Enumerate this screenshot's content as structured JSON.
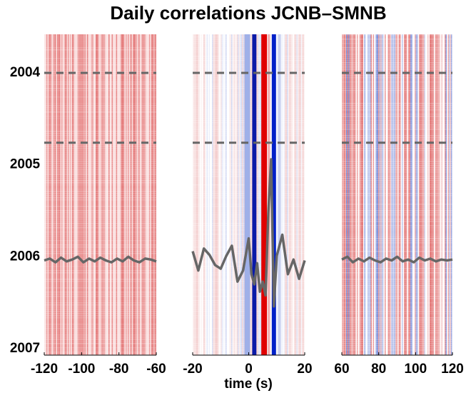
{
  "chart_data": {
    "type": "heatmap",
    "title": "Daily correlations JCNB–SMNB",
    "xlabel": "time (s)",
    "ylim": [
      2003.58,
      2007.07
    ],
    "y_inverted": true,
    "yticks": [
      2004,
      2005,
      2006,
      2007
    ],
    "hlines": [
      2004.0,
      2004.76
    ],
    "hline_color": "#666666",
    "line_color": "#666666",
    "panels": [
      {
        "xlim": [
          -120,
          -60
        ],
        "xticks": [
          -120,
          -100,
          -80,
          -60
        ],
        "texture": "red",
        "line": {
          "x": [
            -120,
            -117,
            -114,
            -111,
            -108,
            -105,
            -102,
            -99,
            -96,
            -93,
            -90,
            -87,
            -84,
            -81,
            -78,
            -75,
            -72,
            -69,
            -66,
            -63,
            -60
          ],
          "y": [
            2006.04,
            2006.02,
            2006.06,
            2006.01,
            2006.05,
            2006.03,
            2006.0,
            2006.06,
            2006.02,
            2006.05,
            2006.01,
            2006.04,
            2006.06,
            2006.02,
            2006.05,
            2006.0,
            2006.04,
            2006.06,
            2006.02,
            2006.03,
            2006.05
          ]
        },
        "stripes": []
      },
      {
        "xlim": [
          -20,
          20
        ],
        "xticks": [
          -20,
          0,
          20
        ],
        "texture": "mixed",
        "line": {
          "x": [
            -20,
            -18,
            -16,
            -14,
            -12,
            -10,
            -8,
            -6,
            -4,
            -2,
            0,
            1,
            2,
            3,
            4,
            5,
            6,
            7,
            8,
            9,
            10,
            12,
            14,
            16,
            18,
            20
          ],
          "y": [
            2005.94,
            2006.15,
            2005.91,
            2005.98,
            2006.09,
            2006.13,
            2005.99,
            2005.88,
            2006.27,
            2006.15,
            2005.8,
            2006.19,
            2006.3,
            2006.07,
            2006.38,
            2006.27,
            2006.42,
            2005.52,
            2004.94,
            2006.54,
            2005.99,
            2005.76,
            2006.19,
            2006.03,
            2006.24,
            2006.04
          ]
        },
        "stripes": [
          {
            "x": 2,
            "width": 1.5,
            "color": "#0a1aa8"
          },
          {
            "x": 5.5,
            "width": 2,
            "color": "#e00000"
          },
          {
            "x": 7.2,
            "width": 0.8,
            "color": "#f4b0b0"
          },
          {
            "x": 9,
            "width": 1.5,
            "color": "#0020c8"
          },
          {
            "x": 11,
            "width": 1,
            "color": "#c8d0f0"
          },
          {
            "x": -0.5,
            "width": 2,
            "color": "#9fb0e8"
          }
        ]
      },
      {
        "xlim": [
          60,
          120
        ],
        "xticks": [
          60,
          80,
          100,
          120
        ],
        "texture": "strong",
        "line": {
          "x": [
            60,
            63,
            66,
            69,
            72,
            75,
            78,
            81,
            84,
            87,
            90,
            93,
            96,
            99,
            102,
            105,
            108,
            111,
            114,
            117,
            120
          ],
          "y": [
            2006.03,
            2006.0,
            2006.06,
            2006.02,
            2006.05,
            2006.01,
            2006.04,
            2006.06,
            2006.02,
            2006.04,
            2006.0,
            2006.05,
            2006.03,
            2006.06,
            2006.01,
            2006.04,
            2006.02,
            2006.05,
            2006.03,
            2006.04,
            2006.03
          ]
        },
        "stripes": []
      }
    ]
  }
}
